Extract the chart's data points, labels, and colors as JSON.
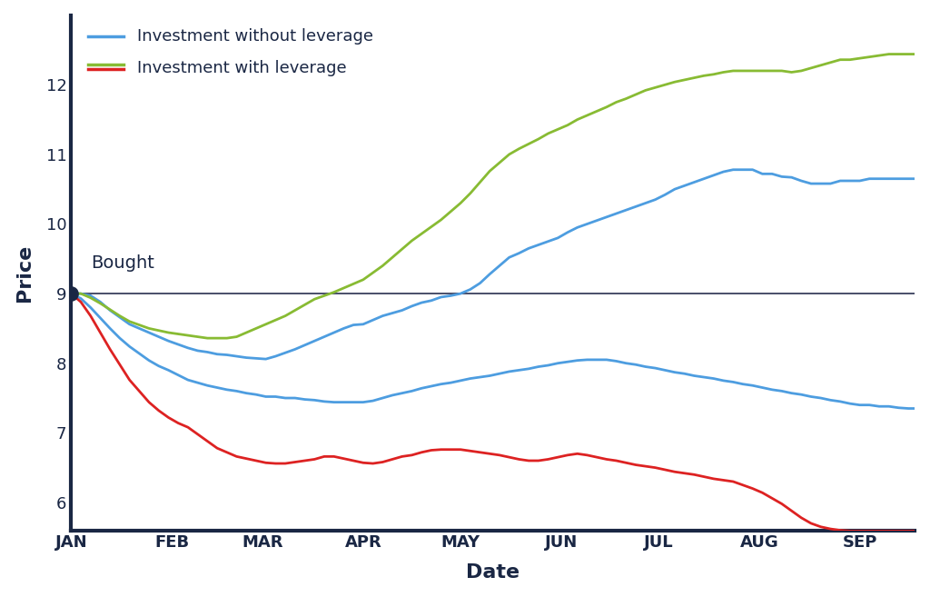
{
  "xlabel": "Date",
  "ylabel": "Price",
  "xlim": [
    0,
    260
  ],
  "ylim": [
    5.6,
    13.0
  ],
  "yticks": [
    6,
    7,
    8,
    9,
    10,
    11,
    12
  ],
  "xtick_positions": [
    0,
    31,
    59,
    90,
    120,
    151,
    181,
    212,
    243
  ],
  "xtick_labels": [
    "JAN",
    "FEB",
    "MAR",
    "APR",
    "MAY",
    "JUN",
    "JUL",
    "AUG",
    "SEP"
  ],
  "reference_y": 9.0,
  "bought_x": 0,
  "bought_y": 9.0,
  "bought_label": "Bought",
  "bg_color": "#ffffff",
  "axis_color": "#1a2744",
  "blue_color": "#4d9de0",
  "green_color": "#88bb33",
  "red_color": "#dd2222",
  "legend_entries": [
    {
      "label": "Investment without leverage",
      "color1": "#4d9de0",
      "color2": "#4d9de0"
    },
    {
      "label": "Investment with leverage",
      "color1": "#88bb33",
      "color2": "#dd2222"
    }
  ],
  "blue_up": {
    "x": [
      0,
      3,
      6,
      9,
      12,
      15,
      18,
      21,
      24,
      27,
      30,
      33,
      36,
      39,
      42,
      45,
      48,
      51,
      54,
      57,
      60,
      63,
      66,
      69,
      72,
      75,
      78,
      81,
      84,
      87,
      90,
      93,
      96,
      99,
      102,
      105,
      108,
      111,
      114,
      117,
      120,
      123,
      126,
      129,
      132,
      135,
      138,
      141,
      144,
      147,
      150,
      153,
      156,
      159,
      162,
      165,
      168,
      171,
      174,
      177,
      180,
      183,
      186,
      189,
      192,
      195,
      198,
      201,
      204,
      207,
      210,
      213,
      216,
      219,
      222,
      225,
      228,
      231,
      234,
      237,
      240,
      243,
      246,
      249,
      252,
      255,
      258,
      261
    ],
    "y": [
      9.0,
      9.0,
      8.97,
      8.88,
      8.76,
      8.66,
      8.56,
      8.5,
      8.44,
      8.38,
      8.32,
      8.27,
      8.22,
      8.18,
      8.16,
      8.13,
      8.12,
      8.1,
      8.08,
      8.07,
      8.06,
      8.1,
      8.15,
      8.2,
      8.26,
      8.32,
      8.38,
      8.44,
      8.5,
      8.55,
      8.56,
      8.62,
      8.68,
      8.72,
      8.76,
      8.82,
      8.87,
      8.9,
      8.95,
      8.97,
      9.0,
      9.06,
      9.15,
      9.28,
      9.4,
      9.52,
      9.58,
      9.65,
      9.7,
      9.75,
      9.8,
      9.88,
      9.95,
      10.0,
      10.05,
      10.1,
      10.15,
      10.2,
      10.25,
      10.3,
      10.35,
      10.42,
      10.5,
      10.55,
      10.6,
      10.65,
      10.7,
      10.75,
      10.78,
      10.78,
      10.78,
      10.72,
      10.72,
      10.68,
      10.67,
      10.62,
      10.58,
      10.58,
      10.58,
      10.62,
      10.62,
      10.62,
      10.65,
      10.65,
      10.65,
      10.65,
      10.65,
      10.65
    ]
  },
  "blue_down": {
    "x": [
      0,
      3,
      6,
      9,
      12,
      15,
      18,
      21,
      24,
      27,
      30,
      33,
      36,
      39,
      42,
      45,
      48,
      51,
      54,
      57,
      60,
      63,
      66,
      69,
      72,
      75,
      78,
      81,
      84,
      87,
      90,
      93,
      96,
      99,
      102,
      105,
      108,
      111,
      114,
      117,
      120,
      123,
      126,
      129,
      132,
      135,
      138,
      141,
      144,
      147,
      150,
      153,
      156,
      159,
      162,
      165,
      168,
      171,
      174,
      177,
      180,
      183,
      186,
      189,
      192,
      195,
      198,
      201,
      204,
      207,
      210,
      213,
      216,
      219,
      222,
      225,
      228,
      231,
      234,
      237,
      240,
      243,
      246,
      249,
      252,
      255,
      258,
      261
    ],
    "y": [
      9.0,
      8.93,
      8.8,
      8.65,
      8.5,
      8.36,
      8.24,
      8.14,
      8.04,
      7.96,
      7.9,
      7.83,
      7.76,
      7.72,
      7.68,
      7.65,
      7.62,
      7.6,
      7.57,
      7.55,
      7.52,
      7.52,
      7.5,
      7.5,
      7.48,
      7.47,
      7.45,
      7.44,
      7.44,
      7.44,
      7.44,
      7.46,
      7.5,
      7.54,
      7.57,
      7.6,
      7.64,
      7.67,
      7.7,
      7.72,
      7.75,
      7.78,
      7.8,
      7.82,
      7.85,
      7.88,
      7.9,
      7.92,
      7.95,
      7.97,
      8.0,
      8.02,
      8.04,
      8.05,
      8.05,
      8.05,
      8.03,
      8.0,
      7.98,
      7.95,
      7.93,
      7.9,
      7.87,
      7.85,
      7.82,
      7.8,
      7.78,
      7.75,
      7.73,
      7.7,
      7.68,
      7.65,
      7.62,
      7.6,
      7.57,
      7.55,
      7.52,
      7.5,
      7.47,
      7.45,
      7.42,
      7.4,
      7.4,
      7.38,
      7.38,
      7.36,
      7.35,
      7.35
    ]
  },
  "green_up": {
    "x": [
      0,
      3,
      6,
      9,
      12,
      15,
      18,
      21,
      24,
      27,
      30,
      33,
      36,
      39,
      42,
      45,
      48,
      51,
      54,
      57,
      60,
      63,
      66,
      69,
      72,
      75,
      78,
      81,
      84,
      87,
      90,
      93,
      96,
      99,
      102,
      105,
      108,
      111,
      114,
      117,
      120,
      123,
      126,
      129,
      132,
      135,
      138,
      141,
      144,
      147,
      150,
      153,
      156,
      159,
      162,
      165,
      168,
      171,
      174,
      177,
      180,
      183,
      186,
      189,
      192,
      195,
      198,
      201,
      204,
      207,
      210,
      213,
      216,
      219,
      222,
      225,
      228,
      231,
      234,
      237,
      240,
      243,
      246,
      249,
      252,
      255,
      258,
      261
    ],
    "y": [
      9.0,
      9.0,
      8.94,
      8.86,
      8.77,
      8.68,
      8.6,
      8.55,
      8.5,
      8.47,
      8.44,
      8.42,
      8.4,
      8.38,
      8.36,
      8.36,
      8.36,
      8.38,
      8.44,
      8.5,
      8.56,
      8.62,
      8.68,
      8.76,
      8.84,
      8.92,
      8.97,
      9.02,
      9.08,
      9.14,
      9.2,
      9.3,
      9.4,
      9.52,
      9.64,
      9.76,
      9.86,
      9.96,
      10.06,
      10.18,
      10.3,
      10.44,
      10.6,
      10.76,
      10.88,
      11.0,
      11.08,
      11.15,
      11.22,
      11.3,
      11.36,
      11.42,
      11.5,
      11.56,
      11.62,
      11.68,
      11.75,
      11.8,
      11.86,
      11.92,
      11.96,
      12.0,
      12.04,
      12.07,
      12.1,
      12.13,
      12.15,
      12.18,
      12.2,
      12.2,
      12.2,
      12.2,
      12.2,
      12.2,
      12.18,
      12.2,
      12.24,
      12.28,
      12.32,
      12.36,
      12.36,
      12.38,
      12.4,
      12.42,
      12.44,
      12.44,
      12.44,
      12.44
    ]
  },
  "red_down": {
    "x": [
      0,
      3,
      6,
      9,
      12,
      15,
      18,
      21,
      24,
      27,
      30,
      33,
      36,
      39,
      42,
      45,
      48,
      51,
      54,
      57,
      60,
      63,
      66,
      69,
      72,
      75,
      78,
      81,
      84,
      87,
      90,
      93,
      96,
      99,
      102,
      105,
      108,
      111,
      114,
      117,
      120,
      123,
      126,
      129,
      132,
      135,
      138,
      141,
      144,
      147,
      150,
      153,
      156,
      159,
      162,
      165,
      168,
      171,
      174,
      177,
      180,
      183,
      186,
      189,
      192,
      195,
      198,
      201,
      204,
      207,
      210,
      213,
      216,
      219,
      222,
      225,
      228,
      231,
      234,
      237,
      240,
      243,
      246,
      249,
      252,
      255,
      258,
      261
    ],
    "y": [
      9.0,
      8.88,
      8.68,
      8.44,
      8.2,
      7.98,
      7.76,
      7.6,
      7.44,
      7.32,
      7.22,
      7.14,
      7.08,
      6.98,
      6.88,
      6.78,
      6.72,
      6.66,
      6.63,
      6.6,
      6.57,
      6.56,
      6.56,
      6.58,
      6.6,
      6.62,
      6.66,
      6.66,
      6.63,
      6.6,
      6.57,
      6.56,
      6.58,
      6.62,
      6.66,
      6.68,
      6.72,
      6.75,
      6.76,
      6.76,
      6.76,
      6.74,
      6.72,
      6.7,
      6.68,
      6.65,
      6.62,
      6.6,
      6.6,
      6.62,
      6.65,
      6.68,
      6.7,
      6.68,
      6.65,
      6.62,
      6.6,
      6.57,
      6.54,
      6.52,
      6.5,
      6.47,
      6.44,
      6.42,
      6.4,
      6.37,
      6.34,
      6.32,
      6.3,
      6.25,
      6.2,
      6.14,
      6.06,
      5.98,
      5.88,
      5.78,
      5.7,
      5.65,
      5.62,
      5.6,
      5.59,
      5.59,
      5.59,
      5.59,
      5.59,
      5.59,
      5.59,
      5.59
    ]
  }
}
